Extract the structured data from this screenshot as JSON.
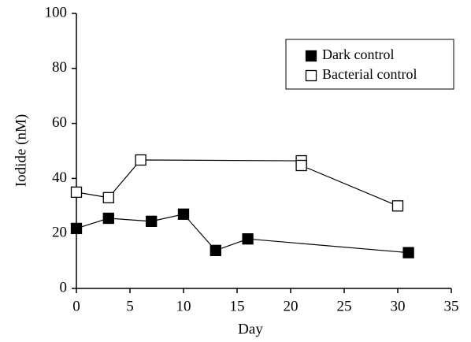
{
  "chart_data": {
    "type": "line",
    "x_label": "Day",
    "y_label": "Iodide (nM)",
    "xlim": [
      0,
      35
    ],
    "xticks": [
      0,
      5,
      10,
      15,
      20,
      25,
      30,
      35
    ],
    "ylim": [
      0,
      100
    ],
    "yticks": [
      0,
      20,
      40,
      60,
      80,
      100
    ],
    "legend": "upper right",
    "series": [
      {
        "name": "Dark control",
        "color": "#000000",
        "filled": true,
        "x": [
          0,
          3,
          7,
          10,
          13,
          16,
          31
        ],
        "values": [
          21.8,
          25.5,
          24.4,
          27,
          13.8,
          18,
          13
        ]
      },
      {
        "name": "Bacterial control",
        "color": "#000000",
        "filled": false,
        "x": [
          0,
          3,
          6,
          21,
          21,
          30
        ],
        "values": [
          35,
          33,
          46.7,
          46.4,
          44.7,
          30
        ]
      }
    ]
  }
}
